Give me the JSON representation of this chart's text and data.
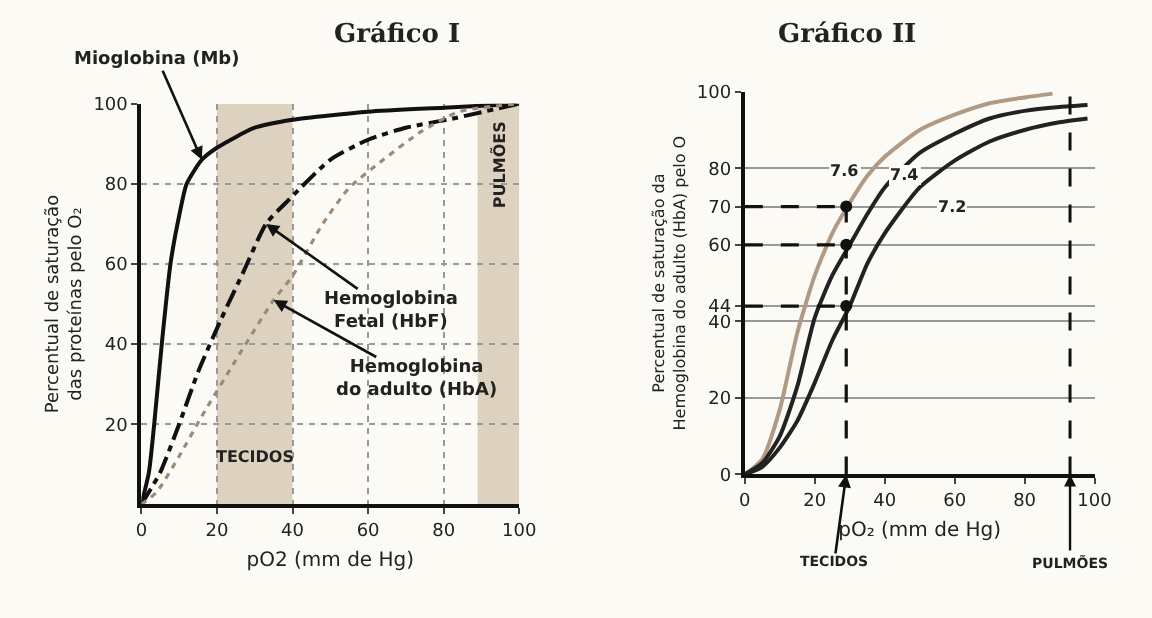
{
  "chart_data": [
    {
      "type": "line",
      "title": "Gráfico I",
      "xlabel": "pO2 (mm de Hg)",
      "ylabel": "Percentual de saturação das proteínas pelo O₂",
      "xlim": [
        0,
        100
      ],
      "ylim": [
        0,
        100
      ],
      "xticks": [
        0,
        20,
        40,
        60,
        80,
        100
      ],
      "yticks": [
        20,
        40,
        60,
        80,
        100
      ],
      "grid": true,
      "series": [
        {
          "color": "#111111",
          "line_style": "solid",
          "x": [
            0,
            2,
            3.4,
            5.4,
            7.7,
            10,
            12,
            16,
            20,
            30,
            40,
            60,
            80,
            100
          ],
          "values": [
            0,
            8,
            20,
            40,
            60,
            72,
            80,
            86,
            89,
            94,
            96,
            98,
            99,
            100
          ]
        },
        {
          "color": "#111111",
          "line_style": "dashdot",
          "x": [
            0,
            5,
            10,
            15,
            21,
            27,
            33,
            39,
            50,
            60,
            70,
            81,
            100
          ],
          "values": [
            0,
            8,
            20,
            33,
            46,
            58,
            70,
            76,
            86,
            91,
            94,
            96,
            100
          ]
        },
        {
          "color": "#9c8a78",
          "line_style": "dotted",
          "x": [
            0,
            4,
            10,
            16,
            25,
            35,
            40,
            48,
            55,
            64,
            74,
            84,
            100
          ],
          "values": [
            0,
            3,
            12,
            22,
            36,
            51,
            57,
            70,
            79,
            86,
            93,
            98,
            100
          ]
        }
      ],
      "bands": [
        {
          "axis": "x",
          "from": 20,
          "to": 40,
          "label": "TECIDOS",
          "color": "#ddd2bf"
        },
        {
          "axis": "x",
          "from": 89,
          "to": 100,
          "label": "PULMÕES",
          "color": "#ddd2bf"
        }
      ],
      "annotations": [
        {
          "text": "Mioglobina (Mb)",
          "x": 16,
          "y": 86
        },
        {
          "text": "Hemoglobina\nFetal (HbF)",
          "x": 33,
          "y": 70
        },
        {
          "text": "Hemoglobina\ndo adulto (HbA)",
          "x": 35,
          "y": 51
        }
      ]
    },
    {
      "type": "line",
      "title": "Gráfico II",
      "xlabel": "pO₂ (mm de Hg)",
      "ylabel": "Percentual de saturação da Hemoglobina do adulto (HbA) pelo O",
      "xlim": [
        0,
        100
      ],
      "ylim": [
        0,
        100
      ],
      "xticks": [
        0,
        20,
        40,
        60,
        80,
        100
      ],
      "yticks": [
        0,
        20,
        40,
        44,
        60,
        70,
        80,
        100
      ],
      "grid": "y",
      "series": [
        {
          "color": "#b09a84",
          "line_style": "solid",
          "x": [
            0,
            5,
            10,
            15,
            20,
            25,
            30,
            35,
            40,
            50,
            60,
            70,
            80,
            88
          ],
          "values": [
            0,
            4,
            17,
            37,
            52,
            63,
            71,
            78,
            83,
            90,
            94,
            97,
            98.5,
            99.5
          ]
        },
        {
          "color": "#222222",
          "line_style": "solid",
          "x": [
            0,
            5,
            10,
            15,
            20,
            25,
            30,
            35,
            40,
            50,
            60,
            70,
            80,
            90,
            98
          ],
          "values": [
            0,
            3,
            10,
            23,
            41,
            52,
            60,
            68,
            75,
            84,
            89,
            93,
            95,
            96,
            96.5
          ]
        },
        {
          "color": "#222222",
          "line_style": "solid",
          "x": [
            0,
            5,
            10,
            15,
            20,
            25,
            30,
            35,
            40,
            50,
            60,
            70,
            80,
            90,
            98
          ],
          "values": [
            0,
            2,
            7,
            14,
            24,
            35,
            44,
            55,
            63,
            75,
            82,
            87,
            90,
            92,
            93
          ]
        },
        {
          "color": "#111111",
          "line_style": "dashed",
          "x": [
            0,
            29
          ],
          "values": [
            70,
            70
          ]
        },
        {
          "color": "#111111",
          "line_style": "dashed",
          "x": [
            0,
            29
          ],
          "values": [
            60,
            60
          ]
        },
        {
          "color": "#111111",
          "line_style": "dashed",
          "x": [
            0,
            29
          ],
          "values": [
            44,
            44
          ]
        },
        {
          "color": "#111111",
          "line_style": "dashed",
          "x": [
            29,
            29
          ],
          "values": [
            0,
            70
          ]
        },
        {
          "type": "scatter",
          "color": "#111111",
          "marker": "circle",
          "x": [
            29,
            29,
            29
          ],
          "values": [
            70,
            60,
            44
          ]
        }
      ],
      "ref_lines": [
        {
          "axis": "x",
          "value": 93,
          "label": "PULMÕES",
          "line_style": "dashed",
          "color": "#111111"
        }
      ],
      "annotations": [
        {
          "text": "7.6",
          "x": 30,
          "y": 76
        },
        {
          "text": "7.4",
          "x": 38,
          "y": 74
        },
        {
          "text": "7.2",
          "x": 50,
          "y": 75
        },
        {
          "text": "TECIDOS",
          "x": 29,
          "y": 0
        }
      ]
    }
  ]
}
